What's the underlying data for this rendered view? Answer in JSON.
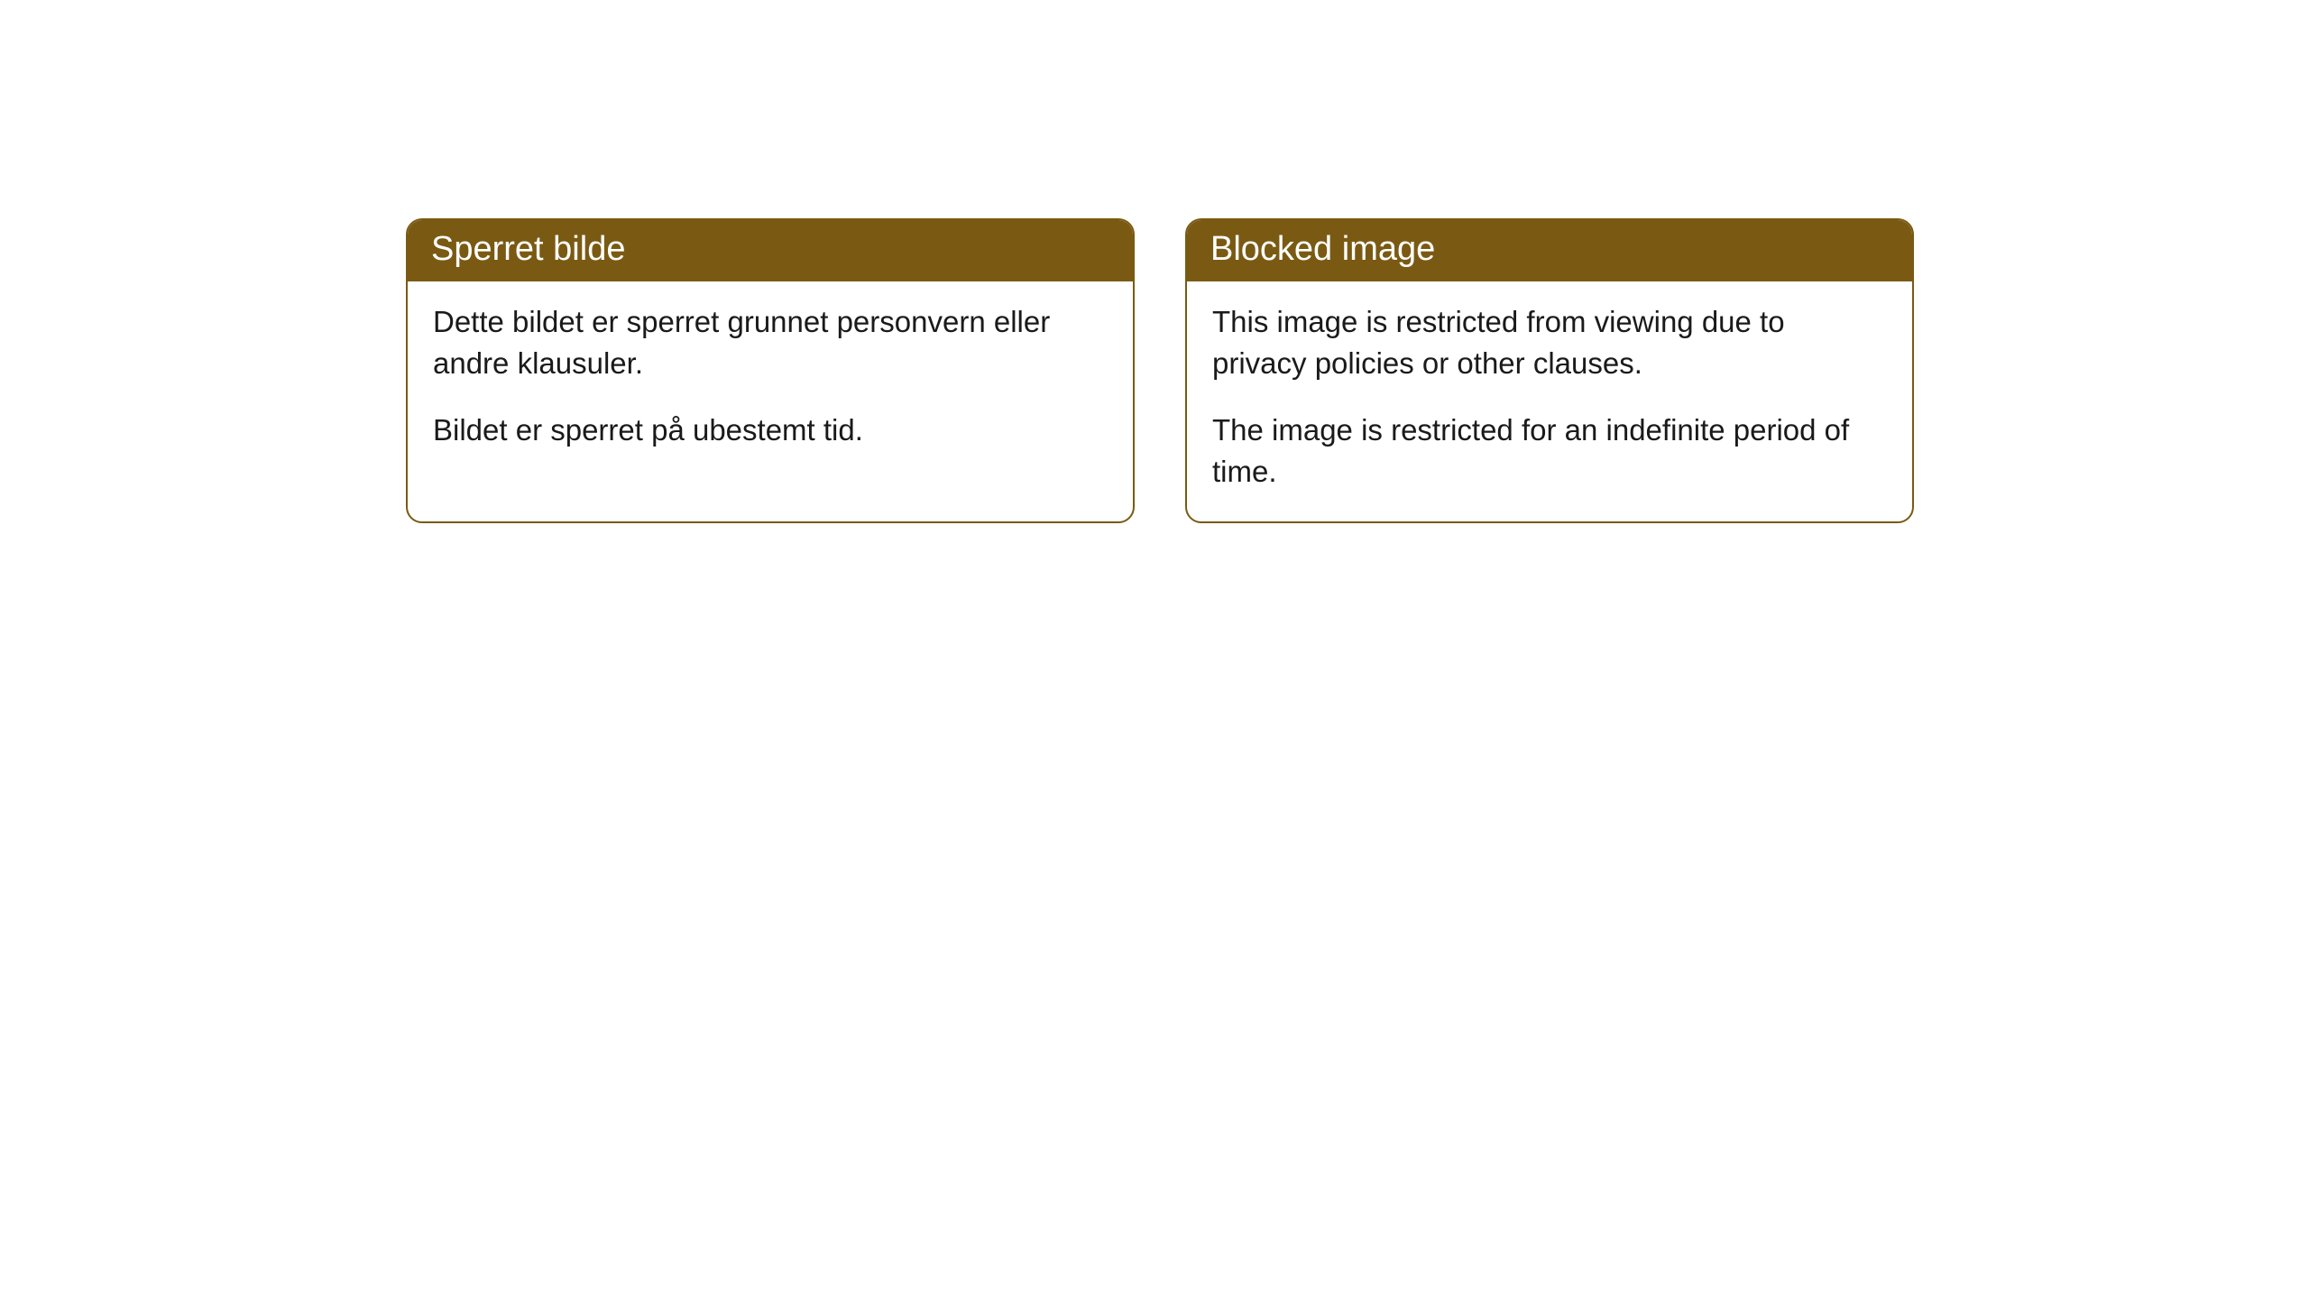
{
  "cards": [
    {
      "title": "Sperret bilde",
      "paragraph1": "Dette bildet er sperret grunnet personvern eller andre klausuler.",
      "paragraph2": "Bildet er sperret på ubestemt tid."
    },
    {
      "title": "Blocked image",
      "paragraph1": "This image is restricted from viewing due to privacy policies or other clauses.",
      "paragraph2": "The image is restricted for an indefinite period of time."
    }
  ],
  "styling": {
    "header_background": "#7a5a13",
    "header_text_color": "#ffffff",
    "border_color": "#7a5a13",
    "body_background": "#ffffff",
    "body_text_color": "#1a1a1a",
    "border_radius": 18,
    "header_fontsize": 38,
    "body_fontsize": 33
  }
}
